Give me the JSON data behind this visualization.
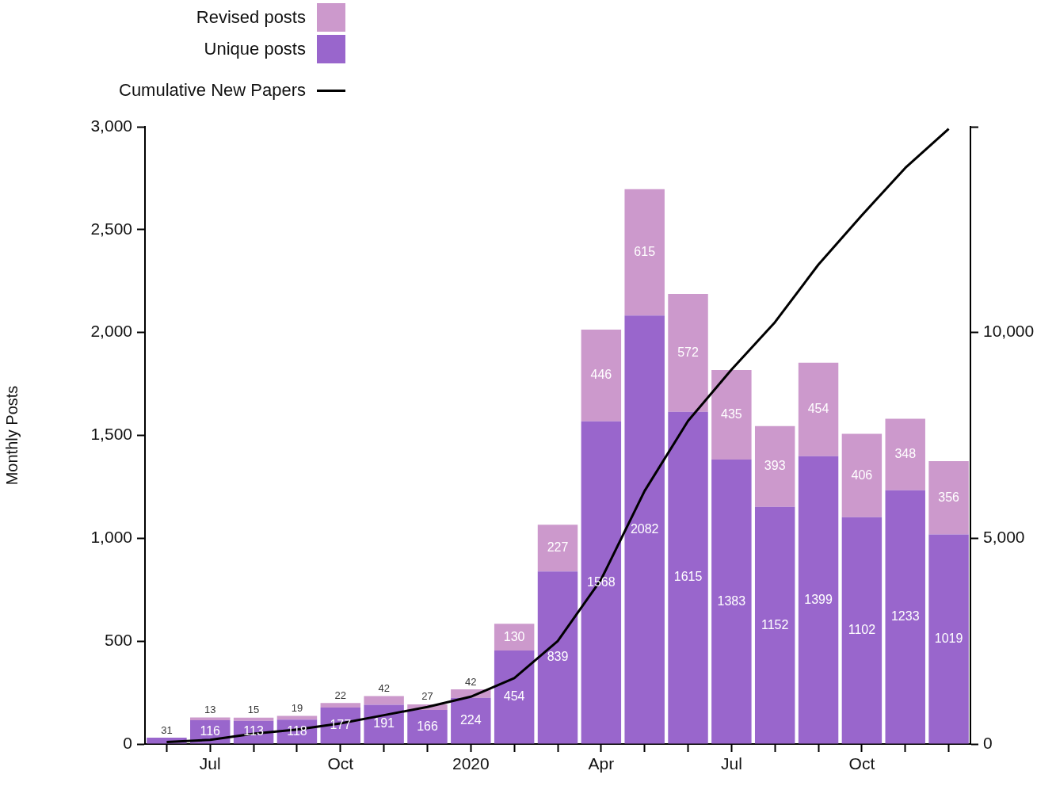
{
  "chart_data": {
    "type": "bar",
    "stacked": true,
    "ylabel": "Monthly Posts",
    "legend": "top",
    "grid": false,
    "marker": "none",
    "categories": [
      null,
      "Jul",
      null,
      null,
      "Oct",
      null,
      null,
      "2020",
      null,
      null,
      "Apr",
      null,
      null,
      "Jul",
      null,
      null,
      "Oct",
      null,
      null
    ],
    "ylim": [
      0,
      3000
    ],
    "yticks": [
      0,
      {
        "value": 500,
        "label": "500"
      },
      {
        "value": 1000,
        "label": "1,000"
      },
      {
        "value": 1500,
        "label": "1,500"
      },
      {
        "value": 2000,
        "label": "2,000"
      },
      {
        "value": 2500,
        "label": "2,500"
      },
      {
        "value": 3000,
        "label": "3,000"
      }
    ],
    "y2lim": [
      0,
      15000
    ],
    "y2ticks": [
      0,
      {
        "value": 5000,
        "label": "5,000"
      },
      {
        "value": 10000,
        "label": "10,000"
      },
      {
        "value": 15000,
        "label": null
      }
    ],
    "series": [
      {
        "name": "Unique posts",
        "color": "#9966cc",
        "values": [
          31,
          116,
          113,
          118,
          177,
          191,
          166,
          224,
          454,
          839,
          1568,
          2082,
          1615,
          1383,
          1152,
          1399,
          1102,
          1233,
          1019
        ],
        "value_labels": [
          "31",
          "116",
          "113",
          "118",
          "177",
          "191",
          "166",
          "224",
          "454",
          "839",
          "1568",
          "2082",
          "1615",
          "1383",
          "1152",
          "1399",
          "1102",
          "1233",
          "1019"
        ]
      },
      {
        "name": "Revised posts",
        "color": "#cc99cc",
        "values": [
          null,
          13,
          15,
          19,
          22,
          42,
          27,
          42,
          130,
          227,
          446,
          615,
          572,
          435,
          393,
          454,
          406,
          348,
          356
        ],
        "value_labels": [
          null,
          "13",
          "15",
          "19",
          "22",
          "42",
          "27",
          "42",
          "130",
          "227",
          "446",
          "615",
          "572",
          "435",
          "393",
          "454",
          "406",
          "348",
          "356"
        ]
      },
      {
        "name": "Cumulative New Papers",
        "type": "line",
        "axis": "y2",
        "color": "#000000",
        "values": [
          50,
          100,
          250,
          350,
          500,
          700,
          900,
          1150,
          1600,
          2500,
          4000,
          6150,
          7850,
          9100,
          10250,
          11650,
          12850,
          14000,
          14950
        ]
      }
    ]
  }
}
